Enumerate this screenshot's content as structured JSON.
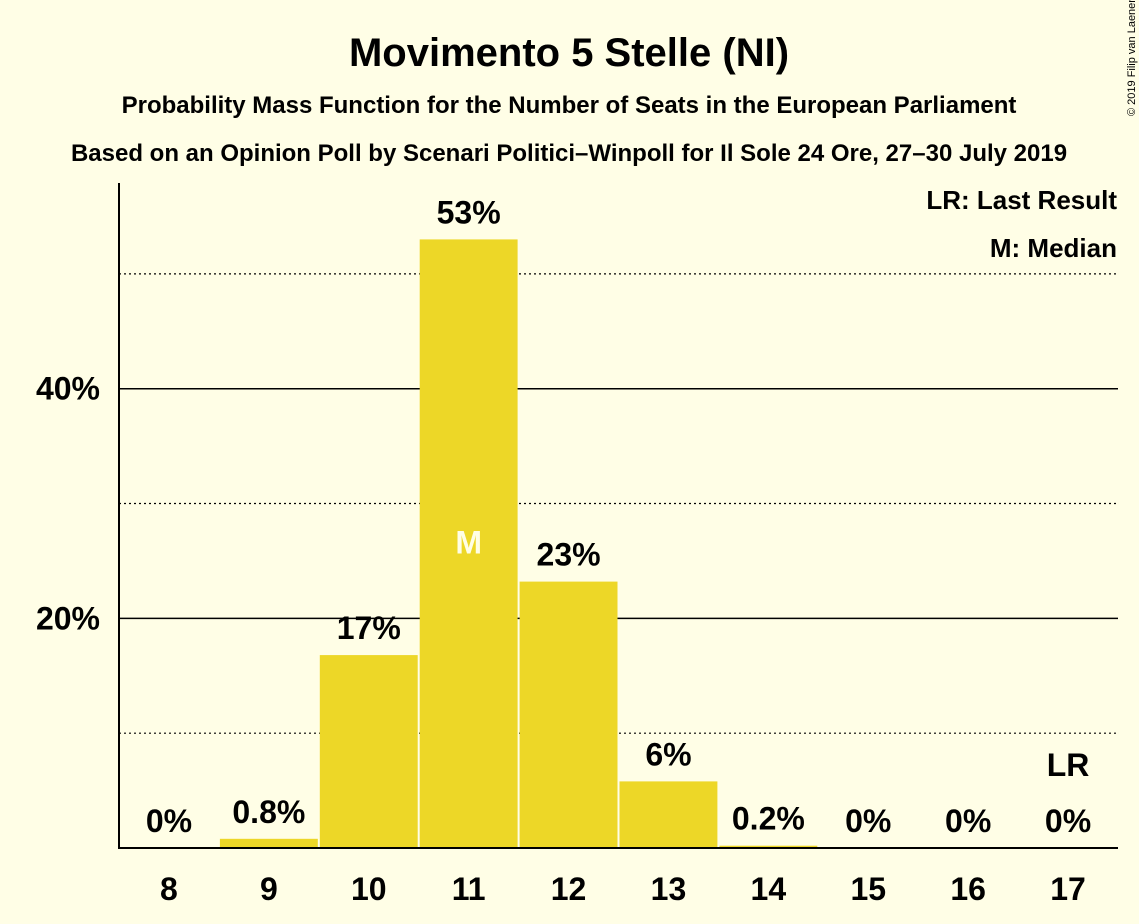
{
  "chart_data": {
    "type": "bar",
    "title": "Movimento 5 Stelle (NI)",
    "subtitle": "Probability Mass Function for the Number of Seats in the European Parliament",
    "subtitle2": "Based on an Opinion Poll by Scenari Politici–Winpoll for Il Sole 24 Ore, 27–30 July 2019",
    "copyright": "© 2019 Filip van Laenen",
    "legend": [
      "LR: Last Result",
      "M: Median"
    ],
    "legend_position": "top-right",
    "categories": [
      "8",
      "9",
      "10",
      "11",
      "12",
      "13",
      "14",
      "15",
      "16",
      "17"
    ],
    "values": [
      0,
      0.8,
      16.8,
      53,
      23.2,
      5.8,
      0.2,
      0,
      0,
      0
    ],
    "value_labels": [
      "0%",
      "0.8%",
      "17%",
      "53%",
      "23%",
      "6%",
      "0.2%",
      "0%",
      "0%",
      "0%"
    ],
    "median_category": "11",
    "median_marker": "M",
    "last_result_category": "17",
    "last_result_marker": "LR",
    "ylim": [
      0,
      58
    ],
    "yticks_major": [
      20,
      40
    ],
    "yticks_major_labels": [
      "20%",
      "40%"
    ],
    "ygrid_minor": [
      10,
      30,
      50
    ],
    "grid": true,
    "bar_color": "#EDD727",
    "background_color": "#FFFEE6"
  }
}
